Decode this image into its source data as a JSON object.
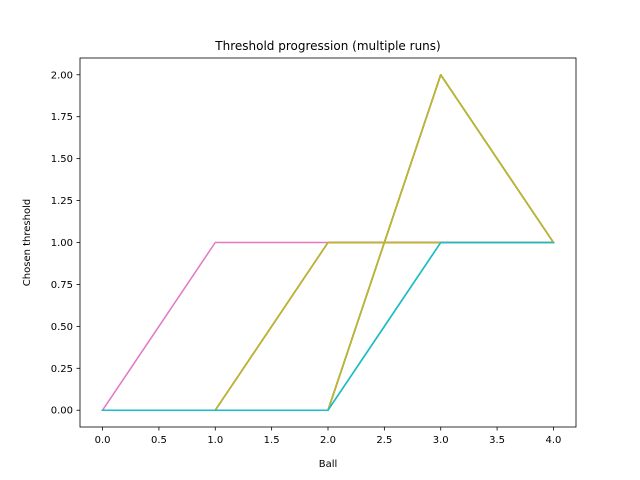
{
  "chart_data": {
    "type": "line",
    "title": "Threshold progression (multiple runs)",
    "xlabel": "Ball",
    "ylabel": "Chosen threshold",
    "xlim": [
      -0.2,
      4.2
    ],
    "ylim": [
      -0.1,
      2.1
    ],
    "xticks": [
      0.0,
      0.5,
      1.0,
      1.5,
      2.0,
      2.5,
      3.0,
      3.5,
      4.0
    ],
    "xtick_labels": [
      "0.0",
      "0.5",
      "1.0",
      "1.5",
      "2.0",
      "2.5",
      "3.0",
      "3.5",
      "4.0"
    ],
    "yticks": [
      0.0,
      0.25,
      0.5,
      0.75,
      1.0,
      1.25,
      1.5,
      1.75,
      2.0
    ],
    "ytick_labels": [
      "0.00",
      "0.25",
      "0.50",
      "0.75",
      "1.00",
      "1.25",
      "1.50",
      "1.75",
      "2.00"
    ],
    "grid": false,
    "series": [
      {
        "color": "#1f77b4",
        "x": [
          0,
          1,
          2,
          3,
          4
        ],
        "y": [
          0,
          0,
          1,
          1,
          1
        ]
      },
      {
        "color": "#ff7f0e",
        "x": [
          0,
          1,
          2,
          3,
          4
        ],
        "y": [
          0,
          0,
          0,
          2,
          1
        ]
      },
      {
        "color": "#2ca02c",
        "x": [
          0,
          1,
          2,
          3,
          4
        ],
        "y": [
          0,
          0,
          0,
          1,
          1
        ]
      },
      {
        "color": "#d62728",
        "x": [
          0,
          1,
          2,
          3,
          4
        ],
        "y": [
          0,
          0,
          1,
          1,
          1
        ]
      },
      {
        "color": "#9467bd",
        "x": [
          0,
          1,
          2,
          3,
          4
        ],
        "y": [
          0,
          0,
          0,
          2,
          1
        ]
      },
      {
        "color": "#8c564b",
        "x": [
          0,
          1,
          2,
          3,
          4
        ],
        "y": [
          0,
          0,
          0,
          2,
          1
        ]
      },
      {
        "color": "#e377c2",
        "x": [
          0,
          1,
          2,
          3,
          4
        ],
        "y": [
          0,
          1,
          1,
          1,
          1
        ]
      },
      {
        "color": "#7f7f7f",
        "x": [
          0,
          1,
          2,
          3,
          4
        ],
        "y": [
          0,
          0,
          0,
          2,
          1
        ]
      },
      {
        "color": "#bcbd22",
        "x": [
          0,
          1,
          2,
          3,
          4
        ],
        "y": [
          0,
          0,
          1,
          1,
          1
        ]
      },
      {
        "color": "#bcbd22",
        "x": [
          0,
          1,
          2,
          3,
          4
        ],
        "y": [
          0,
          0,
          0,
          2,
          1
        ]
      },
      {
        "color": "#17becf",
        "x": [
          0,
          1,
          2,
          3,
          4
        ],
        "y": [
          0,
          0,
          0,
          1,
          1
        ]
      }
    ]
  }
}
